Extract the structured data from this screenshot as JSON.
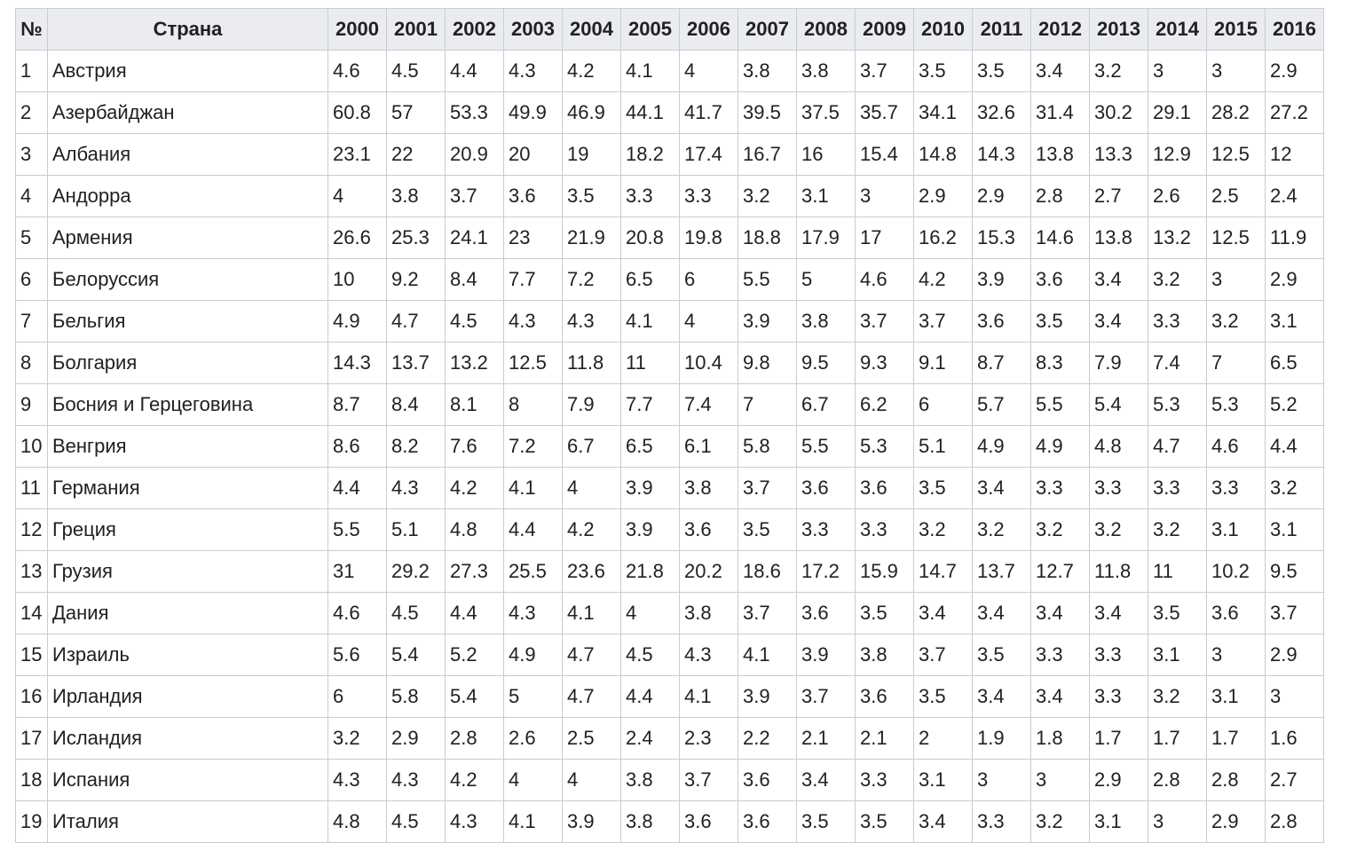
{
  "table": {
    "headers": {
      "num": "№",
      "country": "Страна",
      "years": [
        "2000",
        "2001",
        "2002",
        "2003",
        "2004",
        "2005",
        "2006",
        "2007",
        "2008",
        "2009",
        "2010",
        "2011",
        "2012",
        "2013",
        "2014",
        "2015",
        "2016"
      ]
    },
    "rows": [
      {
        "num": "1",
        "country": "Австрия",
        "values": [
          "4.6",
          "4.5",
          "4.4",
          "4.3",
          "4.2",
          "4.1",
          "4",
          "3.8",
          "3.8",
          "3.7",
          "3.5",
          "3.5",
          "3.4",
          "3.2",
          "3",
          "3",
          "2.9"
        ]
      },
      {
        "num": "2",
        "country": "Азербайджан",
        "values": [
          "60.8",
          "57",
          "53.3",
          "49.9",
          "46.9",
          "44.1",
          "41.7",
          "39.5",
          "37.5",
          "35.7",
          "34.1",
          "32.6",
          "31.4",
          "30.2",
          "29.1",
          "28.2",
          "27.2"
        ]
      },
      {
        "num": "3",
        "country": "Албания",
        "values": [
          "23.1",
          "22",
          "20.9",
          "20",
          "19",
          "18.2",
          "17.4",
          "16.7",
          "16",
          "15.4",
          "14.8",
          "14.3",
          "13.8",
          "13.3",
          "12.9",
          "12.5",
          "12"
        ]
      },
      {
        "num": "4",
        "country": "Андорра",
        "values": [
          "4",
          "3.8",
          "3.7",
          "3.6",
          "3.5",
          "3.3",
          "3.3",
          "3.2",
          "3.1",
          "3",
          "2.9",
          "2.9",
          "2.8",
          "2.7",
          "2.6",
          "2.5",
          "2.4"
        ]
      },
      {
        "num": "5",
        "country": "Армения",
        "values": [
          "26.6",
          "25.3",
          "24.1",
          "23",
          "21.9",
          "20.8",
          "19.8",
          "18.8",
          "17.9",
          "17",
          "16.2",
          "15.3",
          "14.6",
          "13.8",
          "13.2",
          "12.5",
          "11.9"
        ]
      },
      {
        "num": "6",
        "country": "Белоруссия",
        "values": [
          "10",
          "9.2",
          "8.4",
          "7.7",
          "7.2",
          "6.5",
          "6",
          "5.5",
          "5",
          "4.6",
          "4.2",
          "3.9",
          "3.6",
          "3.4",
          "3.2",
          "3",
          "2.9"
        ]
      },
      {
        "num": "7",
        "country": "Бельгия",
        "values": [
          "4.9",
          "4.7",
          "4.5",
          "4.3",
          "4.3",
          "4.1",
          "4",
          "3.9",
          "3.8",
          "3.7",
          "3.7",
          "3.6",
          "3.5",
          "3.4",
          "3.3",
          "3.2",
          "3.1"
        ]
      },
      {
        "num": "8",
        "country": "Болгария",
        "values": [
          "14.3",
          "13.7",
          "13.2",
          "12.5",
          "11.8",
          "11",
          "10.4",
          "9.8",
          "9.5",
          "9.3",
          "9.1",
          "8.7",
          "8.3",
          "7.9",
          "7.4",
          "7",
          "6.5"
        ]
      },
      {
        "num": "9",
        "country": "Босния и Герцеговина",
        "values": [
          "8.7",
          "8.4",
          "8.1",
          "8",
          "7.9",
          "7.7",
          "7.4",
          "7",
          "6.7",
          "6.2",
          "6",
          "5.7",
          "5.5",
          "5.4",
          "5.3",
          "5.3",
          "5.2"
        ]
      },
      {
        "num": "10",
        "country": "Венгрия",
        "values": [
          "8.6",
          "8.2",
          "7.6",
          "7.2",
          "6.7",
          "6.5",
          "6.1",
          "5.8",
          "5.5",
          "5.3",
          "5.1",
          "4.9",
          "4.9",
          "4.8",
          "4.7",
          "4.6",
          "4.4"
        ]
      },
      {
        "num": "11",
        "country": "Германия",
        "values": [
          "4.4",
          "4.3",
          "4.2",
          "4.1",
          "4",
          "3.9",
          "3.8",
          "3.7",
          "3.6",
          "3.6",
          "3.5",
          "3.4",
          "3.3",
          "3.3",
          "3.3",
          "3.3",
          "3.2"
        ]
      },
      {
        "num": "12",
        "country": "Греция",
        "values": [
          "5.5",
          "5.1",
          "4.8",
          "4.4",
          "4.2",
          "3.9",
          "3.6",
          "3.5",
          "3.3",
          "3.3",
          "3.2",
          "3.2",
          "3.2",
          "3.2",
          "3.2",
          "3.1",
          "3.1"
        ]
      },
      {
        "num": "13",
        "country": "Грузия",
        "values": [
          "31",
          "29.2",
          "27.3",
          "25.5",
          "23.6",
          "21.8",
          "20.2",
          "18.6",
          "17.2",
          "15.9",
          "14.7",
          "13.7",
          "12.7",
          "11.8",
          "11",
          "10.2",
          "9.5"
        ]
      },
      {
        "num": "14",
        "country": "Дания",
        "values": [
          "4.6",
          "4.5",
          "4.4",
          "4.3",
          "4.1",
          "4",
          "3.8",
          "3.7",
          "3.6",
          "3.5",
          "3.4",
          "3.4",
          "3.4",
          "3.4",
          "3.5",
          "3.6",
          "3.7"
        ]
      },
      {
        "num": "15",
        "country": "Израиль",
        "values": [
          "5.6",
          "5.4",
          "5.2",
          "4.9",
          "4.7",
          "4.5",
          "4.3",
          "4.1",
          "3.9",
          "3.8",
          "3.7",
          "3.5",
          "3.3",
          "3.3",
          "3.1",
          "3",
          "2.9"
        ]
      },
      {
        "num": "16",
        "country": "Ирландия",
        "values": [
          "6",
          "5.8",
          "5.4",
          "5",
          "4.7",
          "4.4",
          "4.1",
          "3.9",
          "3.7",
          "3.6",
          "3.5",
          "3.4",
          "3.4",
          "3.3",
          "3.2",
          "3.1",
          "3"
        ]
      },
      {
        "num": "17",
        "country": "Исландия",
        "values": [
          "3.2",
          "2.9",
          "2.8",
          "2.6",
          "2.5",
          "2.4",
          "2.3",
          "2.2",
          "2.1",
          "2.1",
          "2",
          "1.9",
          "1.8",
          "1.7",
          "1.7",
          "1.7",
          "1.6"
        ]
      },
      {
        "num": "18",
        "country": "Испания",
        "values": [
          "4.3",
          "4.3",
          "4.2",
          "4",
          "4",
          "3.8",
          "3.7",
          "3.6",
          "3.4",
          "3.3",
          "3.1",
          "3",
          "3",
          "2.9",
          "2.8",
          "2.8",
          "2.7"
        ]
      },
      {
        "num": "19",
        "country": "Италия",
        "values": [
          "4.8",
          "4.5",
          "4.3",
          "4.1",
          "3.9",
          "3.8",
          "3.6",
          "3.6",
          "3.5",
          "3.5",
          "3.4",
          "3.3",
          "3.2",
          "3.1",
          "3",
          "2.9",
          "2.8"
        ]
      }
    ]
  }
}
